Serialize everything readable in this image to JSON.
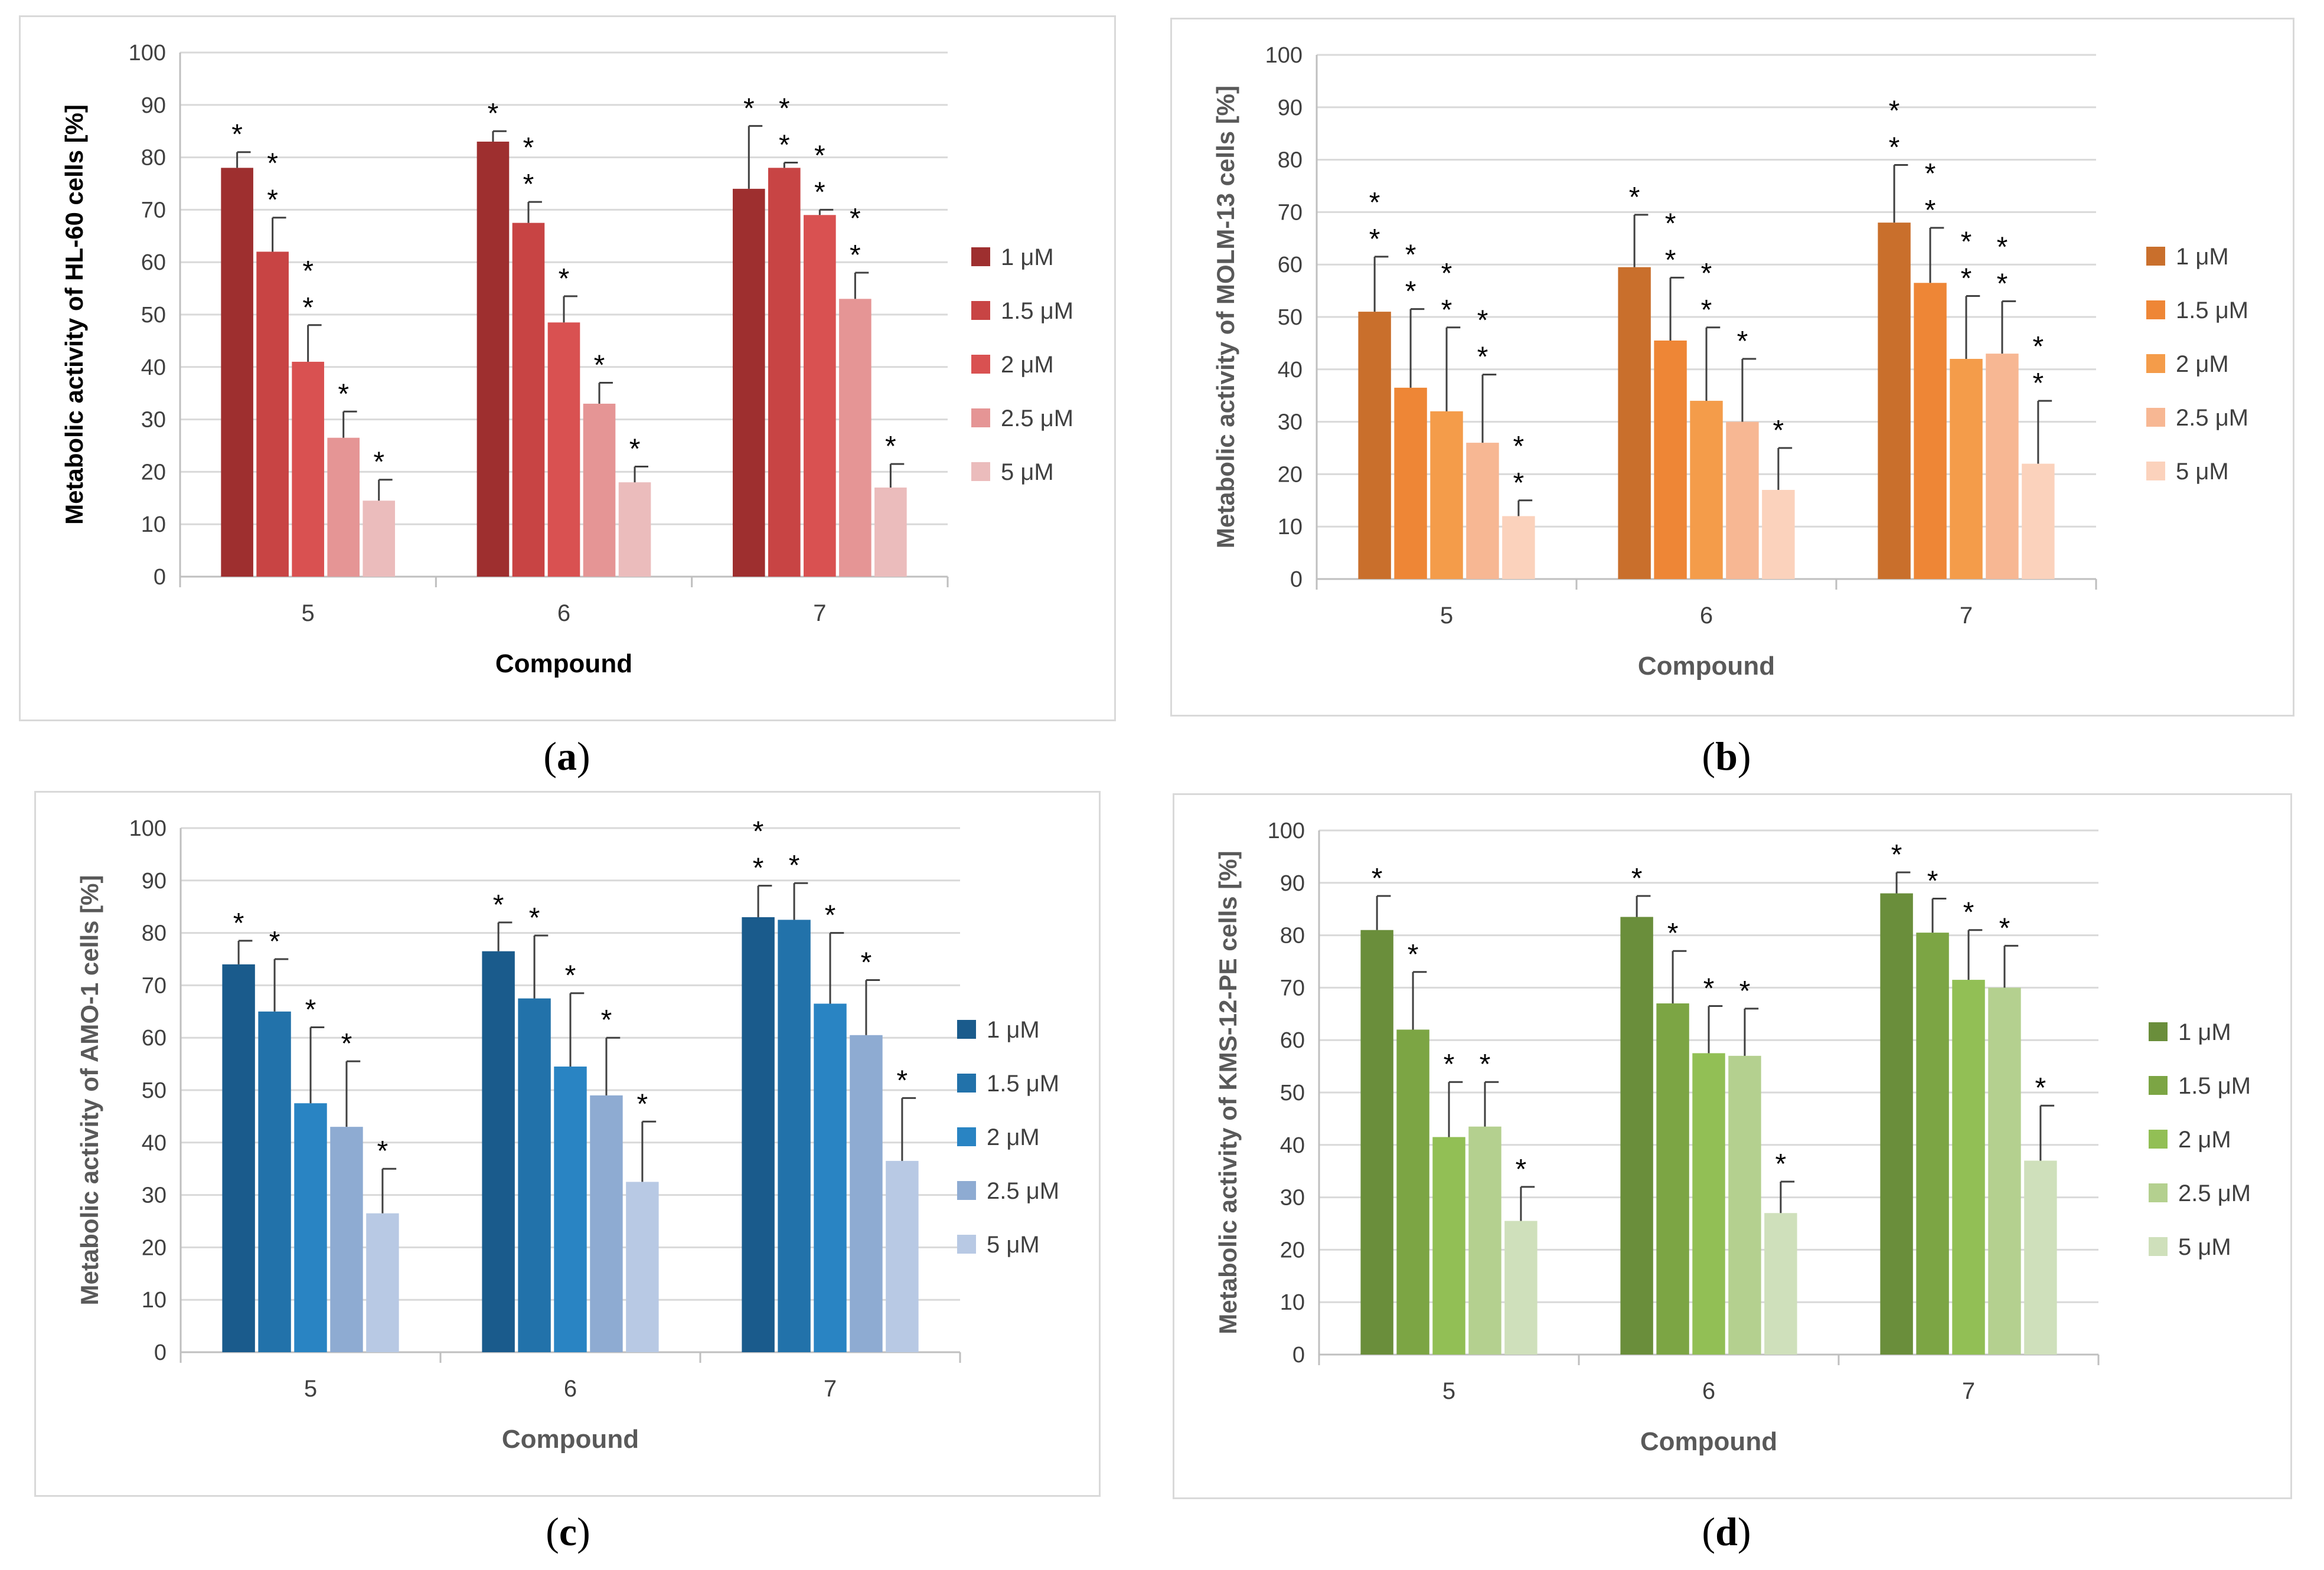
{
  "figure": {
    "captions": [
      "(a)",
      "(b)",
      "(c)",
      "(d)"
    ]
  },
  "chart_data": [
    {
      "type": "bar",
      "panel_label": "a",
      "title": "",
      "xlabel": "Compound",
      "ylabel": "Metabolic activity of HL-60 cells [%]",
      "ylim": [
        0,
        100
      ],
      "yticks": [
        0,
        10,
        20,
        30,
        40,
        50,
        60,
        70,
        80,
        90,
        100
      ],
      "grid": true,
      "legend_position": "right",
      "categories": [
        "5",
        "6",
        "7"
      ],
      "series": [
        {
          "name": "1 μM",
          "color": "#9e2f2f",
          "values": [
            78,
            83,
            74
          ],
          "errors": [
            3,
            2,
            12
          ],
          "significance": [
            "*",
            "*",
            "*"
          ]
        },
        {
          "name": "1.5 μM",
          "color": "#c84444",
          "values": [
            62,
            67.5,
            78
          ],
          "errors": [
            6.5,
            4,
            1
          ],
          "significance": [
            "* *",
            "* *",
            "* *"
          ]
        },
        {
          "name": "2 μM",
          "color": "#d95151",
          "values": [
            41,
            48.5,
            69
          ],
          "errors": [
            7,
            5,
            1
          ],
          "significance": [
            "* *",
            "*",
            "* *"
          ]
        },
        {
          "name": "2.5 μM",
          "color": "#e59595",
          "values": [
            26.5,
            33,
            53
          ],
          "errors": [
            5,
            4,
            5
          ],
          "significance": [
            "*",
            "*",
            "* *"
          ]
        },
        {
          "name": "5 μM",
          "color": "#ebbcbc",
          "values": [
            14.5,
            18,
            17
          ],
          "errors": [
            4,
            3,
            4.5
          ],
          "significance": [
            "*",
            "*",
            "*"
          ]
        }
      ]
    },
    {
      "type": "bar",
      "panel_label": "b",
      "title": "",
      "xlabel": "Compound",
      "ylabel": "Metabolic activity of MOLM-13 cells [%]",
      "ylim": [
        0,
        100
      ],
      "yticks": [
        0,
        10,
        20,
        30,
        40,
        50,
        60,
        70,
        80,
        90,
        100
      ],
      "grid": true,
      "legend_position": "right",
      "categories": [
        "5",
        "6",
        "7"
      ],
      "series": [
        {
          "name": "1 μM",
          "color": "#c96f2c",
          "values": [
            51,
            59.5,
            68
          ],
          "errors": [
            10.5,
            10,
            11
          ],
          "significance": [
            "* *",
            "*",
            "* *"
          ]
        },
        {
          "name": "1.5 μM",
          "color": "#ee8636",
          "values": [
            36.5,
            45.5,
            56.5
          ],
          "errors": [
            15,
            12,
            10.5
          ],
          "significance": [
            "* *",
            "* *",
            "* *"
          ]
        },
        {
          "name": "2 μM",
          "color": "#f49c4a",
          "values": [
            32,
            34,
            42
          ],
          "errors": [
            16,
            14,
            12
          ],
          "significance": [
            "* *",
            "* *",
            "* *"
          ]
        },
        {
          "name": "2.5 μM",
          "color": "#f7b793",
          "values": [
            26,
            30,
            43
          ],
          "errors": [
            13,
            12,
            10
          ],
          "significance": [
            "* *",
            "*",
            "* *"
          ]
        },
        {
          "name": "5 μM",
          "color": "#fbd2bc",
          "values": [
            12,
            17,
            22
          ],
          "errors": [
            3,
            8,
            12
          ],
          "significance": [
            "* *",
            "*",
            "* *"
          ]
        }
      ]
    },
    {
      "type": "bar",
      "panel_label": "c",
      "title": "",
      "xlabel": "Compound",
      "ylabel": "Metabolic activity of AMO-1 cells [%]",
      "ylim": [
        0,
        100
      ],
      "yticks": [
        0,
        10,
        20,
        30,
        40,
        50,
        60,
        70,
        80,
        90,
        100
      ],
      "grid": true,
      "legend_position": "right",
      "categories": [
        "5",
        "6",
        "7"
      ],
      "series": [
        {
          "name": "1 μM",
          "color": "#1a5b8c",
          "values": [
            74,
            76.5,
            83
          ],
          "errors": [
            4.5,
            5.5,
            6
          ],
          "significance": [
            "*",
            "*",
            "* *"
          ]
        },
        {
          "name": "1.5 μM",
          "color": "#2272aa",
          "values": [
            65,
            67.5,
            82.5
          ],
          "errors": [
            10,
            12,
            7
          ],
          "significance": [
            "*",
            "*",
            "*"
          ]
        },
        {
          "name": "2 μM",
          "color": "#2984c3",
          "values": [
            47.5,
            54.5,
            66.5
          ],
          "errors": [
            14.5,
            14,
            13.5
          ],
          "significance": [
            "*",
            "*",
            "*"
          ]
        },
        {
          "name": "2.5 μM",
          "color": "#8eabd2",
          "values": [
            43,
            49,
            60.5
          ],
          "errors": [
            12.5,
            11,
            10.5
          ],
          "significance": [
            "*",
            "*",
            "*"
          ]
        },
        {
          "name": "5 μM",
          "color": "#b8c9e4",
          "values": [
            26.5,
            32.5,
            36.5
          ],
          "errors": [
            8.5,
            11.5,
            12
          ],
          "significance": [
            "*",
            "*",
            "*"
          ]
        }
      ]
    },
    {
      "type": "bar",
      "panel_label": "d",
      "title": "",
      "xlabel": "Compound",
      "ylabel": "Metabolic activity of KMS-12-PE cells [%]",
      "ylim": [
        0,
        100
      ],
      "yticks": [
        0,
        10,
        20,
        30,
        40,
        50,
        60,
        70,
        80,
        90,
        100
      ],
      "grid": true,
      "legend_position": "right",
      "categories": [
        "5",
        "6",
        "7"
      ],
      "series": [
        {
          "name": "1 μM",
          "color": "#6a8e3b",
          "values": [
            81,
            83.5,
            88
          ],
          "errors": [
            6.5,
            4,
            4
          ],
          "significance": [
            "*",
            "*",
            "*"
          ]
        },
        {
          "name": "1.5 μM",
          "color": "#7ca544",
          "values": [
            62,
            67,
            80.5
          ],
          "errors": [
            11,
            10,
            6.5
          ],
          "significance": [
            "*",
            "*",
            "*"
          ]
        },
        {
          "name": "2 μM",
          "color": "#92bf55",
          "values": [
            41.5,
            57.5,
            71.5
          ],
          "errors": [
            10.5,
            9,
            9.5
          ],
          "significance": [
            "*",
            "*",
            "*"
          ]
        },
        {
          "name": "2.5 μM",
          "color": "#b4d08f",
          "values": [
            43.5,
            57,
            70
          ],
          "errors": [
            8.5,
            9,
            8
          ],
          "significance": [
            "*",
            "*",
            "*"
          ]
        },
        {
          "name": "5 μM",
          "color": "#cfe0bb",
          "values": [
            25.5,
            27,
            37
          ],
          "errors": [
            6.5,
            6,
            10.5
          ],
          "significance": [
            "*",
            "*",
            "*"
          ]
        }
      ]
    }
  ]
}
